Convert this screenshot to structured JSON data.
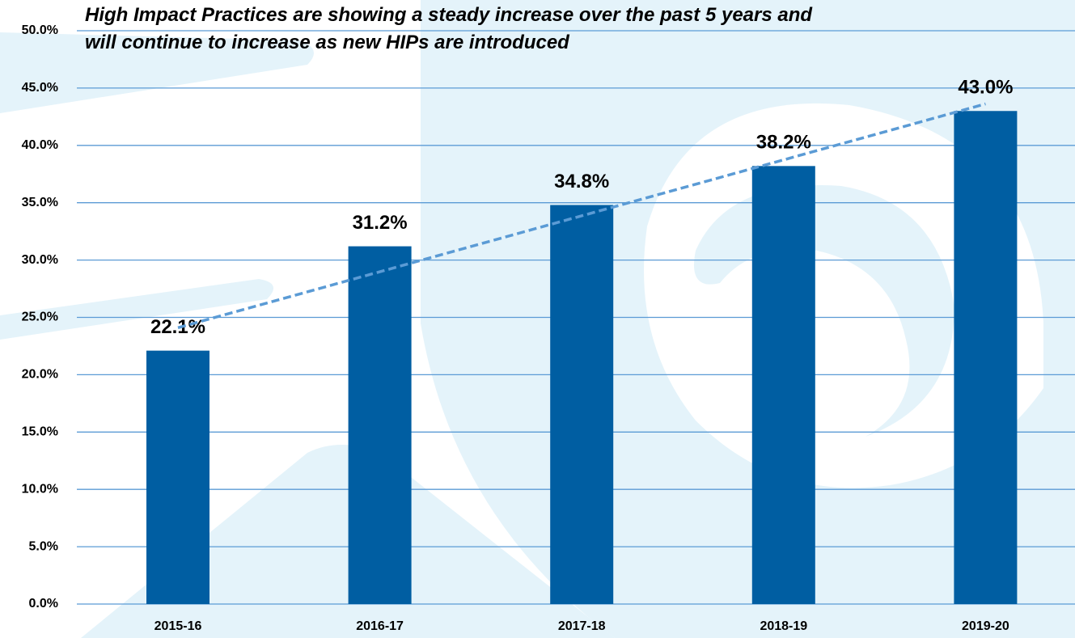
{
  "chart_data": {
    "type": "bar",
    "title": [
      "High Impact Practices are showing a steady increase over the past 5 years and",
      "will continue to increase as new HIPs are introduced"
    ],
    "categories": [
      "2015-16",
      "2016-17",
      "2017-18",
      "2018-19",
      "2019-20"
    ],
    "values": [
      22.1,
      31.2,
      34.8,
      38.2,
      43.0
    ],
    "value_labels": [
      "22.1%",
      "31.2%",
      "34.8%",
      "38.2%",
      "43.0%"
    ],
    "color": "#005ea2",
    "trendline": {
      "type": "linear",
      "color": "#5b9bd5"
    },
    "ylim": [
      0,
      50
    ],
    "yticks": [
      {
        "value": 0,
        "label": "0.0%"
      },
      {
        "value": 5,
        "label": "5.0%"
      },
      {
        "value": 10,
        "label": "10.0%"
      },
      {
        "value": 15,
        "label": "15.0%"
      },
      {
        "value": 20,
        "label": "20.0%"
      },
      {
        "value": 25,
        "label": "25.0%"
      },
      {
        "value": 30,
        "label": "30.0%"
      },
      {
        "value": 35,
        "label": "35.0%"
      },
      {
        "value": 40,
        "label": "40.0%"
      },
      {
        "value": 45,
        "label": "45.0%"
      },
      {
        "value": 50,
        "label": "50.0%"
      }
    ],
    "grid": true
  }
}
